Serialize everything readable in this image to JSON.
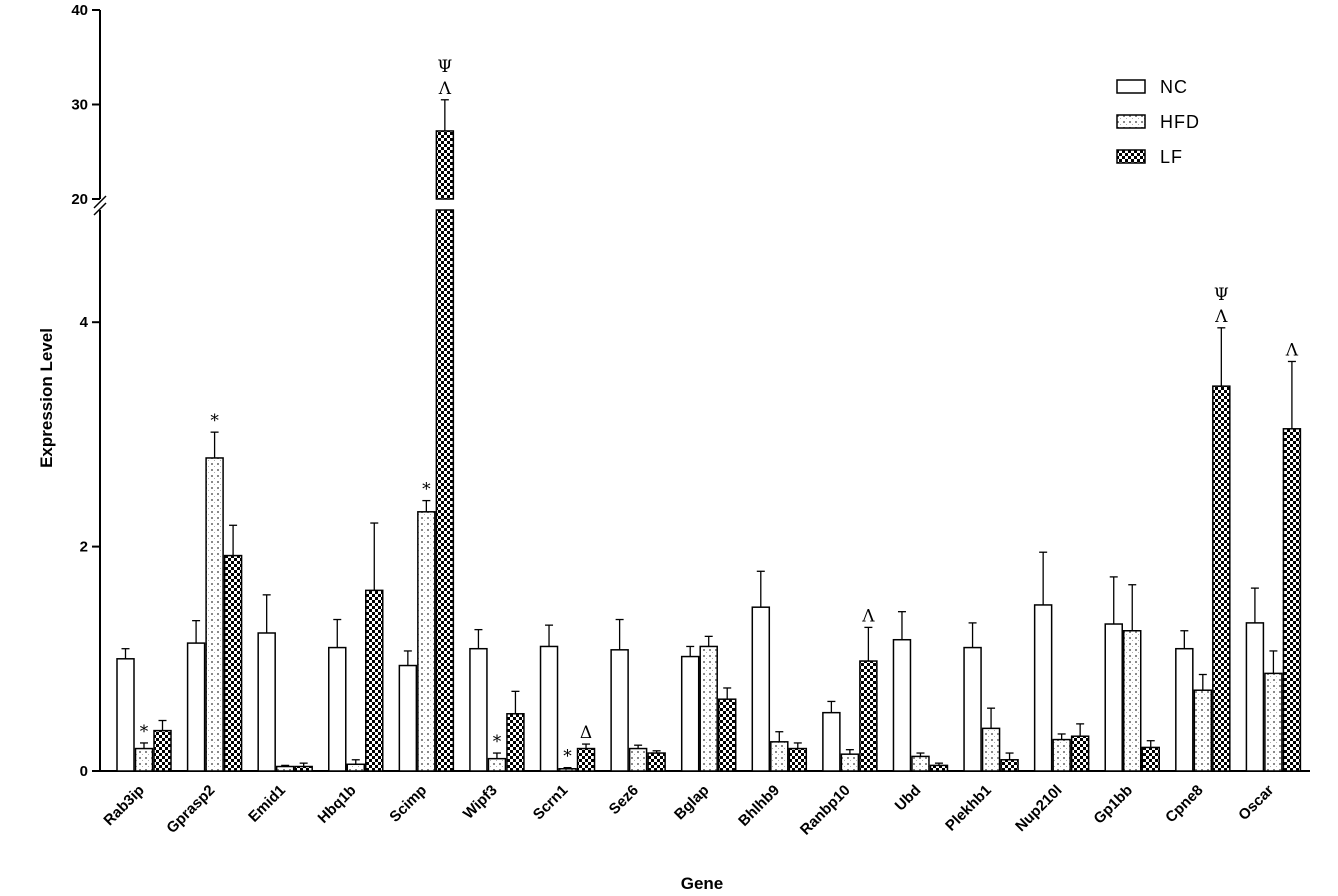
{
  "chart_data": {
    "type": "bar",
    "title": "",
    "xlabel": "Gene",
    "ylabel": "Expression Level",
    "y_axis": {
      "broken": true,
      "lower_segment": {
        "range": [
          0,
          5
        ],
        "tick_values": [
          0,
          2,
          4
        ],
        "tick_labels": [
          "0",
          "2",
          "4"
        ]
      },
      "upper_segment": {
        "range": [
          20,
          40
        ],
        "tick_values": [
          20,
          30,
          40
        ],
        "tick_labels": [
          "20",
          "30",
          "40"
        ]
      }
    },
    "grid": false,
    "legend_position": "top-right",
    "categories": [
      "Rab3ip",
      "Gprasp2",
      "Emid1",
      "Hbq1b",
      "Scimp",
      "Wipf3",
      "Scrn1",
      "Sez6",
      "Bglap",
      "Bhlhb9",
      "Ranbp10",
      "Ubd",
      "Plekhb1",
      "Nup210l",
      "Gp1bb",
      "Cpne8",
      "Oscar"
    ],
    "series": [
      {
        "name": "NC",
        "pattern": "open",
        "values": [
          1.0,
          1.14,
          1.23,
          1.1,
          0.94,
          1.09,
          1.11,
          1.08,
          1.02,
          1.46,
          0.52,
          1.17,
          1.1,
          1.48,
          1.31,
          1.09,
          1.32
        ],
        "errors": [
          0.09,
          0.2,
          0.34,
          0.25,
          0.13,
          0.17,
          0.19,
          0.27,
          0.09,
          0.32,
          0.1,
          0.25,
          0.22,
          0.47,
          0.42,
          0.16,
          0.31
        ]
      },
      {
        "name": "HFD",
        "pattern": "dotted",
        "values": [
          0.2,
          2.79,
          0.04,
          0.06,
          2.31,
          0.11,
          0.02,
          0.2,
          1.11,
          0.26,
          0.15,
          0.13,
          0.38,
          0.28,
          1.25,
          0.72,
          0.87
        ],
        "errors": [
          0.05,
          0.23,
          0.01,
          0.04,
          0.1,
          0.05,
          0.01,
          0.03,
          0.09,
          0.09,
          0.04,
          0.03,
          0.18,
          0.05,
          0.41,
          0.14,
          0.2
        ]
      },
      {
        "name": "LF",
        "pattern": "checkered",
        "values": [
          0.36,
          1.92,
          0.04,
          1.61,
          27.2,
          0.51,
          0.2,
          0.16,
          0.64,
          0.2,
          0.98,
          0.05,
          0.1,
          0.31,
          0.21,
          3.43,
          3.05
        ],
        "errors": [
          0.09,
          0.27,
          0.03,
          0.6,
          3.3,
          0.2,
          0.04,
          0.02,
          0.1,
          0.05,
          0.3,
          0.02,
          0.06,
          0.11,
          0.06,
          0.52,
          0.6
        ]
      }
    ],
    "annotations": [
      {
        "text": "*",
        "category": "Rab3ip",
        "series": "HFD"
      },
      {
        "text": "*",
        "category": "Gprasp2",
        "series": "HFD"
      },
      {
        "text": "*",
        "category": "Scimp",
        "series": "HFD"
      },
      {
        "text": "Λ",
        "category": "Scimp",
        "series": "LF"
      },
      {
        "text": "Ψ",
        "category": "Scimp",
        "series": "LF"
      },
      {
        "text": "*",
        "category": "Wipf3",
        "series": "HFD"
      },
      {
        "text": "*",
        "category": "Scrn1",
        "series": "HFD"
      },
      {
        "text": "Δ",
        "category": "Scrn1",
        "series": "LF"
      },
      {
        "text": "Λ",
        "category": "Ranbp10",
        "series": "LF"
      },
      {
        "text": "Λ",
        "category": "Cpne8",
        "series": "LF"
      },
      {
        "text": "Ψ",
        "category": "Cpne8",
        "series": "LF"
      },
      {
        "text": "Λ",
        "category": "Oscar",
        "series": "LF"
      }
    ]
  }
}
